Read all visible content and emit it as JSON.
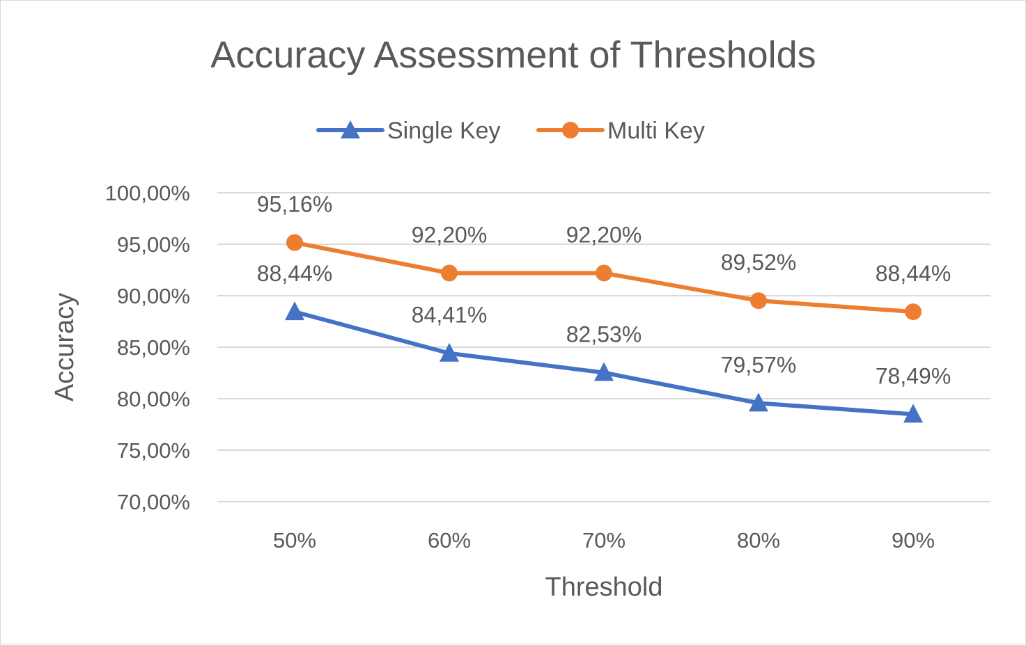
{
  "chart_data": {
    "type": "line",
    "title": "Accuracy Assessment of Thresholds",
    "xlabel": "Threshold",
    "ylabel": "Accuracy",
    "categories": [
      "50%",
      "60%",
      "70%",
      "80%",
      "90%"
    ],
    "ylim": [
      0.7,
      1.0
    ],
    "yticks": [
      0.7,
      0.75,
      0.8,
      0.85,
      0.9,
      0.95,
      1.0
    ],
    "ytick_labels": [
      "70,00%",
      "75,00%",
      "80,00%",
      "85,00%",
      "90,00%",
      "95,00%",
      "100,00%"
    ],
    "grid": true,
    "legend_position": "top",
    "series": [
      {
        "name": "Single Key",
        "color": "#4472c4",
        "marker": "triangle",
        "values": [
          0.8844,
          0.8441,
          0.8253,
          0.7957,
          0.7849
        ],
        "labels": [
          "88,44%",
          "84,41%",
          "82,53%",
          "79,57%",
          "78,49%"
        ]
      },
      {
        "name": "Multi Key",
        "color": "#ed7d31",
        "marker": "circle",
        "values": [
          0.9516,
          0.922,
          0.922,
          0.8952,
          0.8844
        ],
        "labels": [
          "95,16%",
          "92,20%",
          "92,20%",
          "89,52%",
          "88,44%"
        ]
      }
    ]
  }
}
